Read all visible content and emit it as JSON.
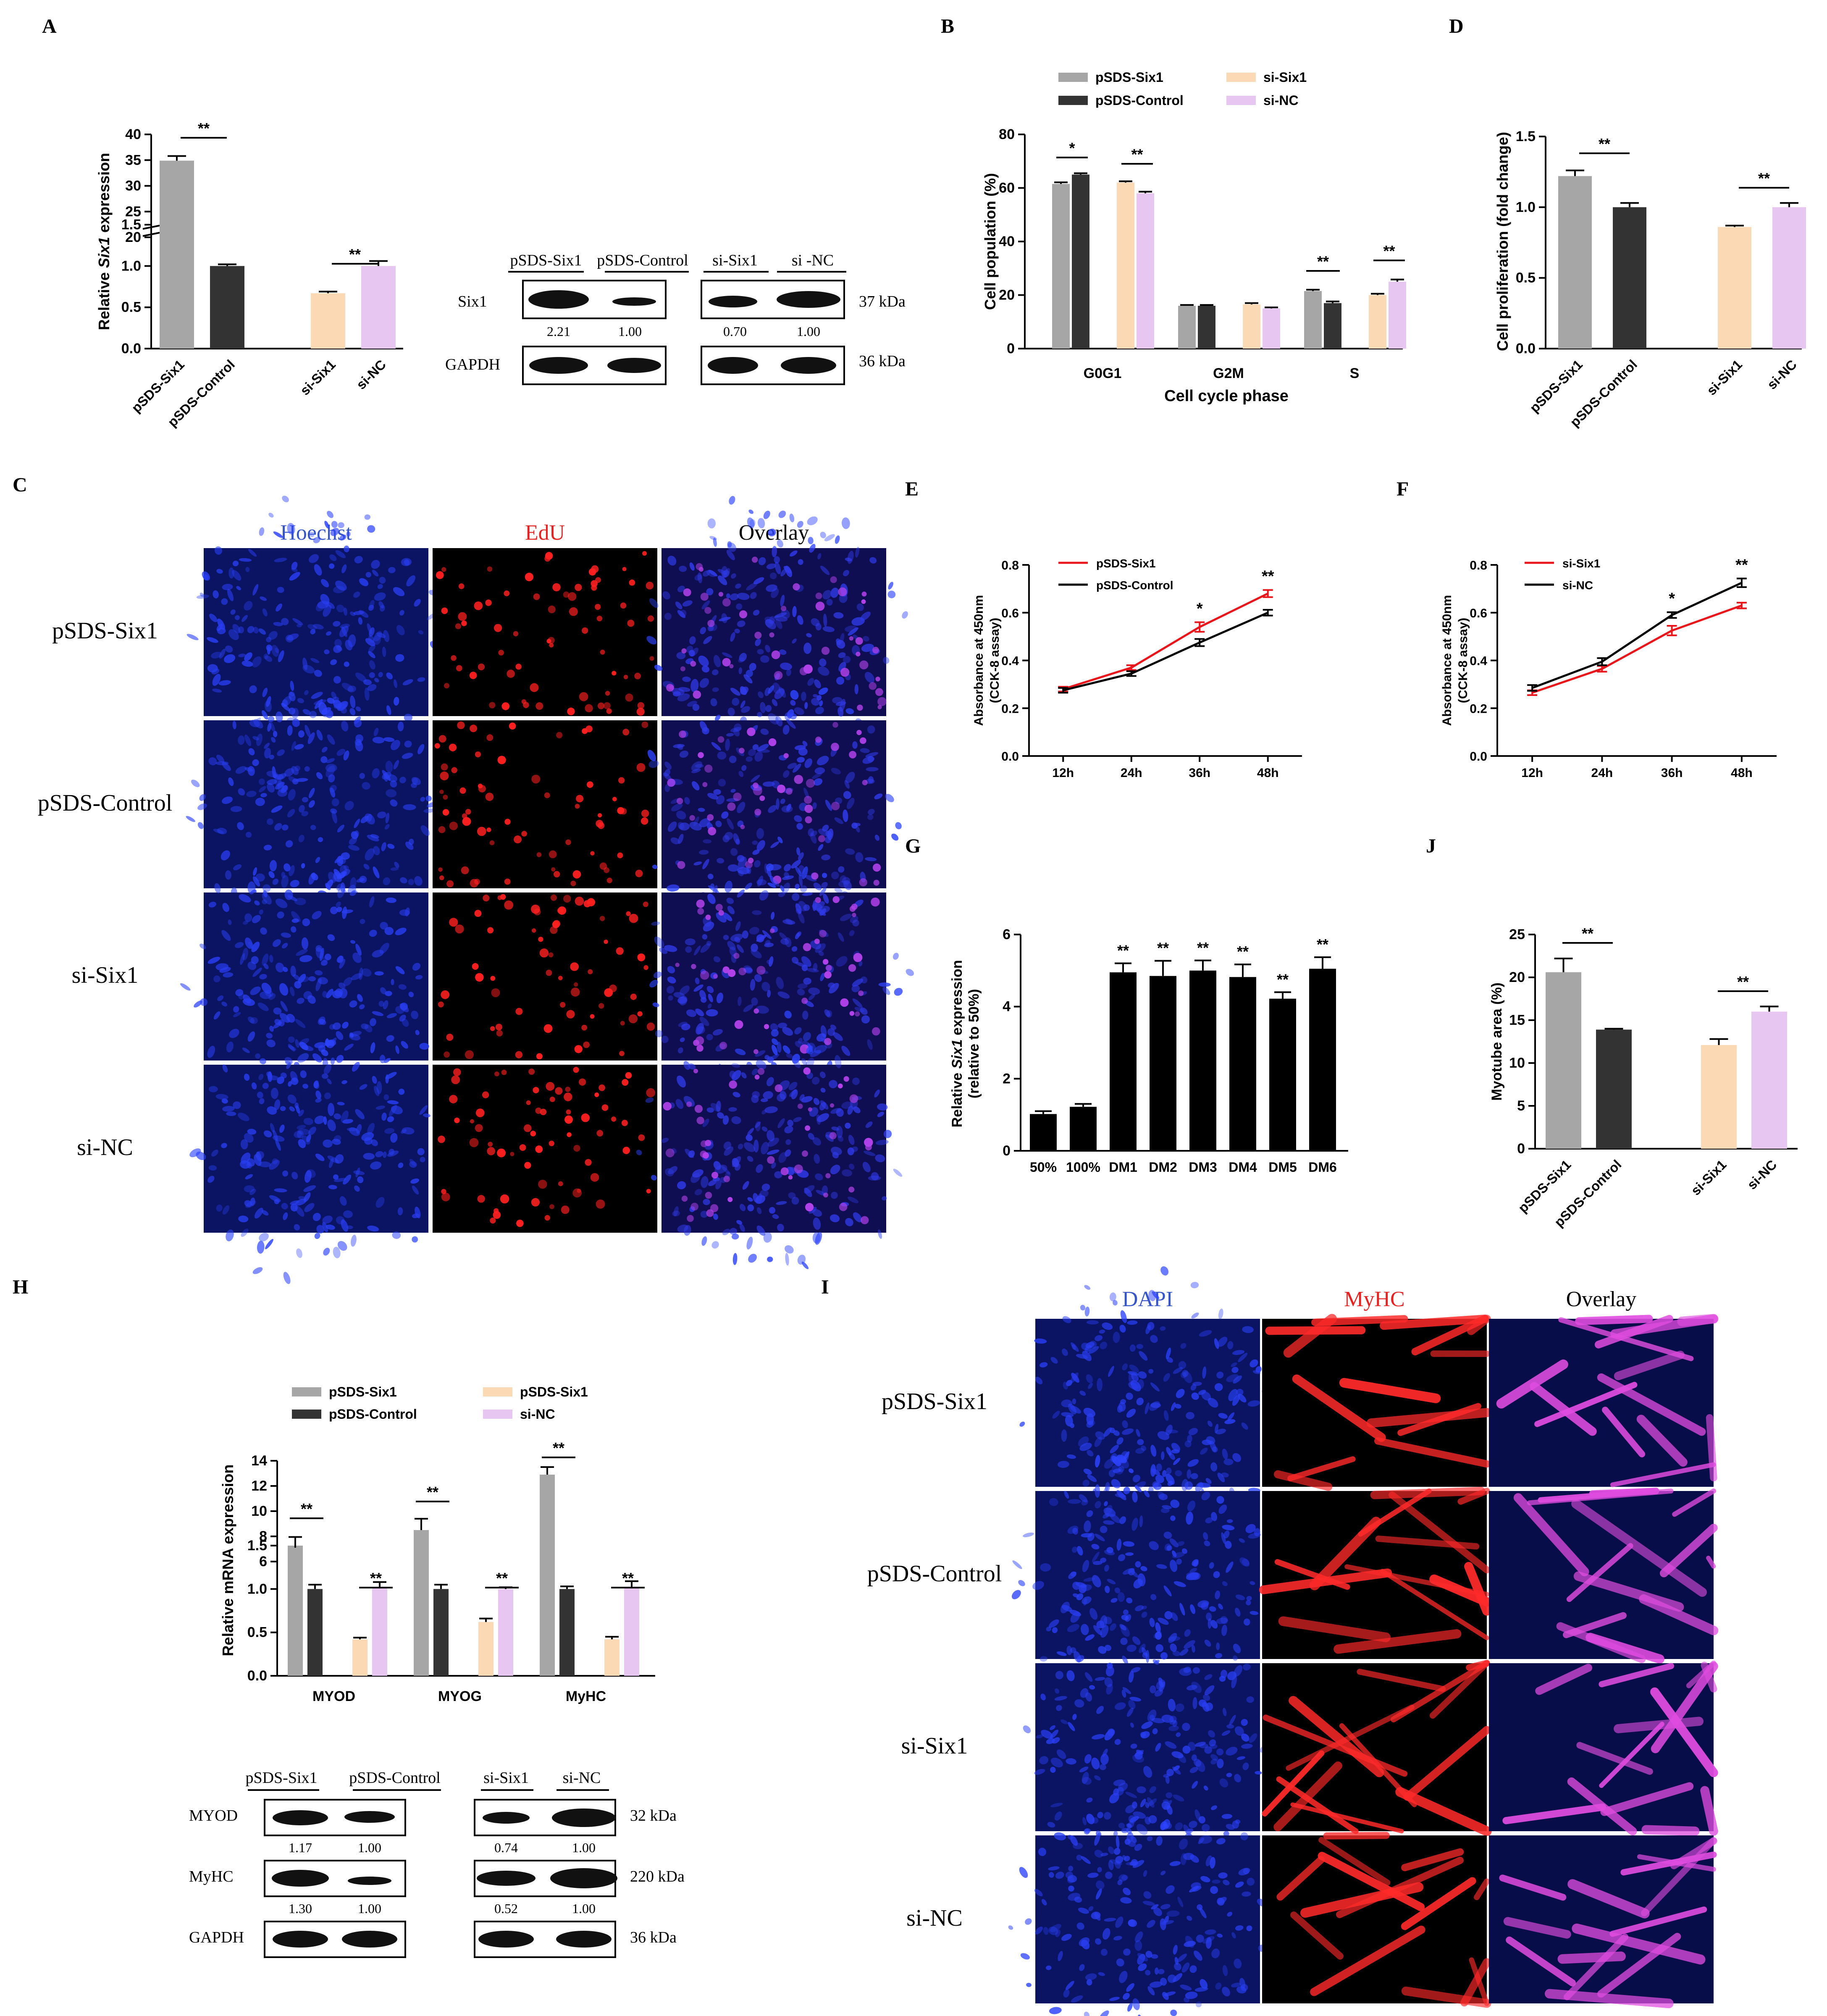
{
  "colors": {
    "gray": "#a6a6a6",
    "dark": "#333333",
    "peach": "#fbd9b4",
    "violet": "#e8c6f2",
    "black": "#000000",
    "red": "#e8151b",
    "hoechst_label": "#3656c8",
    "edu_label": "#e52222"
  },
  "panels": {
    "A": "A",
    "B": "B",
    "C": "C",
    "D": "D",
    "E": "E",
    "F": "F",
    "G": "G",
    "H": "H",
    "I": "I",
    "J": "J"
  },
  "sig": {
    "one": "*",
    "two": "**"
  },
  "chart_data": [
    {
      "id": "A",
      "type": "bar",
      "ylabel_pre": "Relative ",
      "ylabel_italic": "Six1",
      "ylabel_post": " expression",
      "axis_break": true,
      "ylim_lower": [
        0,
        1.5
      ],
      "ylim_upper": [
        20,
        40
      ],
      "yticks_lower": [
        "0.0",
        "0.5",
        "1.0",
        "1.5"
      ],
      "yticks_upper": [
        "20",
        "25",
        "30",
        "35",
        "40"
      ],
      "categories": [
        "pSDS-Six1",
        "pSDS-Control",
        "si-Six1",
        "si-NC"
      ],
      "values": [
        34.9,
        1.0,
        0.67,
        1.0
      ],
      "errors": [
        0.9,
        0.02,
        0.02,
        0.06
      ],
      "colors": [
        "gray",
        "dark",
        "peach",
        "violet"
      ],
      "significance": [
        "**",
        "**"
      ]
    },
    {
      "id": "A-blot",
      "type": "table",
      "group_labels": [
        "pSDS-Six1",
        "pSDS-Control",
        "si-Six1",
        "si -NC"
      ],
      "rows": [
        "Six1",
        "GAPDH"
      ],
      "densitometry": [
        "2.21",
        "1.00",
        "0.70",
        "1.00"
      ],
      "sizes": [
        "37 kDa",
        "36 kDa"
      ]
    },
    {
      "id": "B",
      "type": "bar",
      "xlabel": "Cell cycle phase",
      "ylabel": "Cell population (%)",
      "ylim": [
        0,
        80
      ],
      "yticks": [
        "0",
        "20",
        "40",
        "60",
        "80"
      ],
      "categories": [
        "G0G1",
        "G2M",
        "S"
      ],
      "series": [
        {
          "name": "pSDS-Six1",
          "color": "gray",
          "values": [
            61.5,
            16.0,
            21.5
          ],
          "errors": [
            0.6,
            0.3,
            0.5
          ]
        },
        {
          "name": "pSDS-Control",
          "color": "dark",
          "values": [
            65.0,
            16.0,
            17.0
          ],
          "errors": [
            0.5,
            0.3,
            0.6
          ]
        },
        {
          "name": "si-Six1",
          "color": "peach",
          "values": [
            62.0,
            16.5,
            20.0
          ],
          "errors": [
            0.5,
            0.5,
            0.5
          ]
        },
        {
          "name": "si-NC",
          "color": "violet",
          "values": [
            58.0,
            15.0,
            25.0
          ],
          "errors": [
            0.6,
            0.4,
            0.8
          ]
        }
      ],
      "significance": [
        "*",
        "**",
        "**",
        "**"
      ]
    },
    {
      "id": "C",
      "type": "table",
      "columns": [
        "Hoechst",
        "EdU",
        "Overlay"
      ],
      "rows": [
        "pSDS-Six1",
        "pSDS-Control",
        "si-Six1",
        "si-NC"
      ]
    },
    {
      "id": "D",
      "type": "bar",
      "ylabel": "Cell proliferation (fold change)",
      "ylim": [
        0,
        1.5
      ],
      "yticks": [
        "0.0",
        "0.5",
        "1.0",
        "1.5"
      ],
      "categories": [
        "pSDS-Six1",
        "pSDS-Control",
        "si-Six1",
        "si-NC"
      ],
      "values": [
        1.22,
        1.0,
        0.86,
        1.0
      ],
      "errors": [
        0.04,
        0.03,
        0.01,
        0.03
      ],
      "colors": [
        "gray",
        "dark",
        "peach",
        "violet"
      ],
      "significance": [
        "**",
        "**"
      ]
    },
    {
      "id": "E",
      "type": "line",
      "ylabel": "Absorbance at 450nm",
      "ylabel2": "(CCK-8 assay)",
      "ylim": [
        0,
        0.8
      ],
      "yticks": [
        "0.0",
        "0.2",
        "0.4",
        "0.6",
        "0.8"
      ],
      "x": [
        "12h",
        "24h",
        "36h",
        "48h"
      ],
      "series": [
        {
          "name": "pSDS-Six1",
          "color": "red",
          "values": [
            0.28,
            0.37,
            0.54,
            0.68
          ],
          "errors": [
            0.01,
            0.01,
            0.02,
            0.015
          ]
        },
        {
          "name": "pSDS-Control",
          "color": "black",
          "values": [
            0.275,
            0.345,
            0.475,
            0.6
          ],
          "errors": [
            0.01,
            0.01,
            0.015,
            0.012
          ]
        }
      ],
      "significance": [
        "",
        "",
        "*",
        "**"
      ]
    },
    {
      "id": "F",
      "type": "line",
      "ylabel": "Absorbance at 450nm",
      "ylabel2": "(CCK-8 assay)",
      "ylim": [
        0,
        0.8
      ],
      "yticks": [
        "0.0",
        "0.2",
        "0.4",
        "0.6",
        "0.8"
      ],
      "x": [
        "12h",
        "24h",
        "36h",
        "48h"
      ],
      "series": [
        {
          "name": "si-Six1",
          "color": "red",
          "values": [
            0.265,
            0.365,
            0.525,
            0.63
          ],
          "errors": [
            0.01,
            0.012,
            0.02,
            0.012
          ]
        },
        {
          "name": "si-NC",
          "color": "black",
          "values": [
            0.285,
            0.395,
            0.59,
            0.725
          ],
          "errors": [
            0.012,
            0.015,
            0.012,
            0.018
          ]
        }
      ],
      "significance": [
        "",
        "",
        "*",
        "**"
      ]
    },
    {
      "id": "G",
      "type": "bar",
      "ylabel_pre": "Relative ",
      "ylabel_italic": "Six1",
      "ylabel_post": " expression",
      "ylabel2": "(relative to 50%)",
      "ylim": [
        0,
        6
      ],
      "yticks": [
        "0",
        "2",
        "4",
        "6"
      ],
      "categories": [
        "50%",
        "100%",
        "DM1",
        "DM2",
        "DM3",
        "DM4",
        "DM5",
        "DM6"
      ],
      "values": [
        1.02,
        1.22,
        4.95,
        4.85,
        5.0,
        4.82,
        4.22,
        5.05
      ],
      "errors": [
        0.08,
        0.08,
        0.25,
        0.42,
        0.28,
        0.35,
        0.18,
        0.32
      ],
      "significance": [
        "",
        "",
        "**",
        "**",
        "**",
        "**",
        "**",
        "**"
      ]
    },
    {
      "id": "H",
      "type": "bar",
      "ylabel": "Relative  mRNA expression",
      "axis_break": true,
      "ylim_lower": [
        0,
        1.5
      ],
      "ylim_upper": [
        6,
        14
      ],
      "yticks_lower": [
        "0.0",
        "0.5",
        "1.0",
        "1.5"
      ],
      "yticks_upper": [
        "6",
        "8",
        "10",
        "12",
        "14"
      ],
      "categories": [
        "MYOD",
        "MYOG",
        "MyHC"
      ],
      "series": [
        {
          "name": "pSDS-Six1",
          "color": "gray",
          "values": [
            7.1,
            8.5,
            12.9
          ],
          "errors": [
            0.85,
            0.9,
            0.6
          ]
        },
        {
          "name": "pSDS-Control",
          "color": "dark",
          "values": [
            1.0,
            1.0,
            1.0
          ],
          "errors": [
            0.05,
            0.05,
            0.03
          ]
        },
        {
          "name": "pSDS-Six1",
          "color": "peach",
          "values": [
            0.42,
            0.62,
            0.42
          ],
          "errors": [
            0.02,
            0.04,
            0.03
          ]
        },
        {
          "name": "si-NC",
          "color": "violet",
          "values": [
            1.02,
            1.0,
            1.02
          ],
          "errors": [
            0.06,
            0.02,
            0.07
          ]
        }
      ],
      "significance": [
        "**",
        "**",
        "**",
        "**",
        "**",
        "**"
      ]
    },
    {
      "id": "H-blot",
      "type": "table",
      "group_labels": [
        "pSDS-Six1",
        "pSDS-Control",
        "si-Six1",
        "si-NC"
      ],
      "rows": [
        "MYOD",
        "MyHC",
        "GAPDH"
      ],
      "densitometry_myod": [
        "1.17",
        "1.00",
        "0.74",
        "1.00"
      ],
      "densitometry_myhc": [
        "1.30",
        "1.00",
        "0.52",
        "1.00"
      ],
      "sizes": [
        "32 kDa",
        "220 kDa",
        "36 kDa"
      ]
    },
    {
      "id": "I",
      "type": "table",
      "columns": [
        "DAPI",
        "MyHC",
        "Overlay"
      ],
      "rows": [
        "pSDS-Six1",
        "pSDS-Control",
        "si-Six1",
        "si-NC"
      ]
    },
    {
      "id": "J",
      "type": "bar",
      "ylabel": "Myotube area (%)",
      "ylim": [
        0,
        25
      ],
      "yticks": [
        "0",
        "5",
        "10",
        "15",
        "20",
        "25"
      ],
      "categories": [
        "pSDS-Six1",
        "pSDS-Control",
        "si-Six1",
        "si-NC"
      ],
      "values": [
        20.6,
        13.9,
        12.1,
        16.0
      ],
      "errors": [
        1.6,
        0.1,
        0.7,
        0.6
      ],
      "colors": [
        "gray",
        "dark",
        "peach",
        "violet"
      ],
      "significance": [
        "**",
        "**"
      ]
    }
  ]
}
